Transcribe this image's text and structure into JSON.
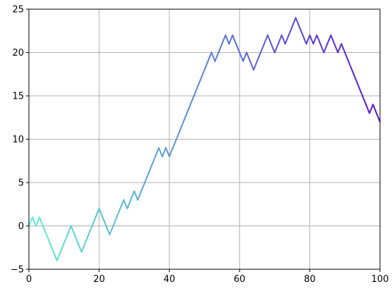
{
  "chart_data": {
    "type": "line",
    "title": "",
    "xlabel": "",
    "ylabel": "",
    "xlim": [
      0,
      100
    ],
    "ylim": [
      -5,
      25
    ],
    "xticks": [
      0,
      20,
      40,
      60,
      80,
      100
    ],
    "yticks": [
      -5,
      0,
      5,
      10,
      15,
      20,
      25
    ],
    "xtick_labels": [
      "0",
      "20",
      "40",
      "60",
      "80",
      "100"
    ],
    "ytick_labels": [
      "−5",
      "0",
      "5",
      "10",
      "15",
      "20",
      "25"
    ],
    "grid": true,
    "legend": "none",
    "color_start": "#5ef0d2",
    "color_end": "#5a14d6",
    "series": [
      {
        "x": [
          0,
          1,
          2,
          3,
          4,
          5,
          6,
          7,
          8,
          9,
          10,
          11,
          12,
          13,
          14,
          15,
          16,
          17,
          18,
          19,
          20,
          21,
          22,
          23,
          24,
          25,
          26,
          27,
          28,
          29,
          30,
          31,
          32,
          33,
          34,
          35,
          36,
          37,
          38,
          39,
          40,
          41,
          42,
          43,
          44,
          45,
          46,
          47,
          48,
          49,
          50,
          51,
          52,
          53,
          54,
          55,
          56,
          57,
          58,
          59,
          60,
          61,
          62,
          63,
          64,
          65,
          66,
          67,
          68,
          69,
          70,
          71,
          72,
          73,
          74,
          75,
          76,
          77,
          78,
          79,
          80,
          81,
          82,
          83,
          84,
          85,
          86,
          87,
          88,
          89,
          90,
          91,
          92,
          93,
          94,
          95,
          96,
          97,
          98,
          99,
          100
        ],
        "y": [
          0,
          1,
          0,
          1,
          0,
          -1,
          -2,
          -3,
          -4,
          -3,
          -2,
          -1,
          0,
          -1,
          -2,
          -3,
          -2,
          -1,
          0,
          1,
          2,
          1,
          0,
          -1,
          0,
          1,
          2,
          3,
          2,
          3,
          4,
          3,
          4,
          5,
          6,
          7,
          8,
          9,
          8,
          9,
          8,
          9,
          10,
          11,
          12,
          13,
          14,
          15,
          16,
          17,
          18,
          19,
          20,
          19,
          20,
          21,
          22,
          21,
          22,
          21,
          20,
          19,
          20,
          19,
          18,
          19,
          20,
          21,
          22,
          21,
          20,
          21,
          22,
          21,
          22,
          23,
          24,
          23,
          22,
          21,
          22,
          21,
          22,
          21,
          20,
          21,
          22,
          21,
          20,
          21,
          20,
          19,
          18,
          17,
          16,
          15,
          14,
          13,
          14,
          13,
          12
        ]
      }
    ]
  }
}
